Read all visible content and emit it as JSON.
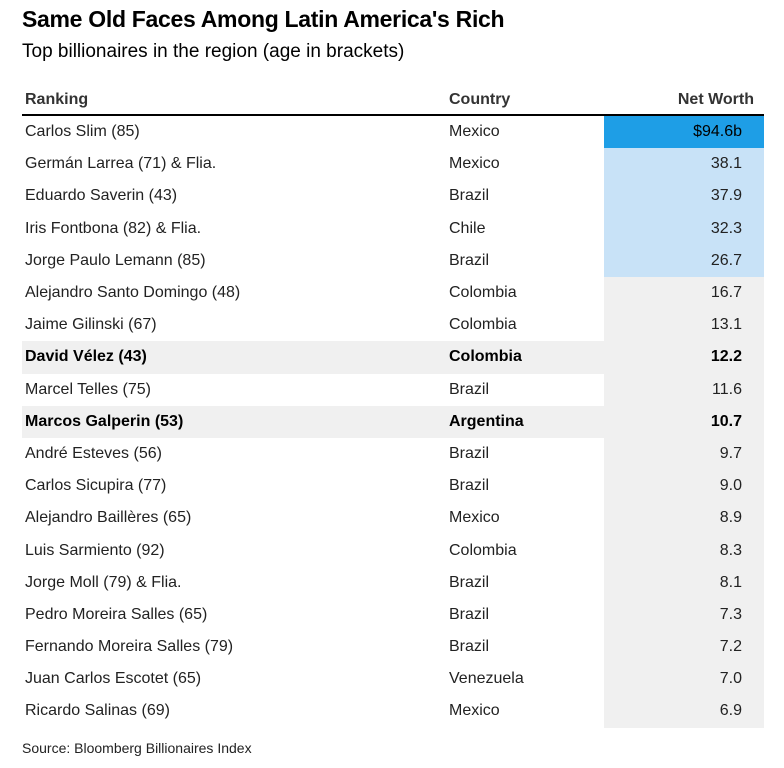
{
  "title": "Same Old Faces Among Latin America's Rich",
  "subtitle": "Top billionaires in the region (age in brackets)",
  "source": "Source: Bloomberg Billionaires Index",
  "colors": {
    "top1": "#1e9ee6",
    "top5": "#c8e2f7",
    "rest": "#f0f0f0",
    "highlight_row": "#f0f0f0"
  },
  "chart_data": {
    "type": "table",
    "title": "Same Old Faces Among Latin America's Rich",
    "subtitle": "Top billionaires in the region (age in brackets)",
    "columns": [
      "Ranking",
      "Country",
      "Net Worth"
    ],
    "rows": [
      {
        "name": "Carlos Slim (85)",
        "country": "Mexico",
        "net_worth": "$94.6b",
        "value": 94.6,
        "bold": false
      },
      {
        "name": "Germán Larrea (71) & Flia.",
        "country": "Mexico",
        "net_worth": "38.1",
        "value": 38.1,
        "bold": false
      },
      {
        "name": "Eduardo Saverin (43)",
        "country": "Brazil",
        "net_worth": "37.9",
        "value": 37.9,
        "bold": false
      },
      {
        "name": "Iris Fontbona (82) & Flia.",
        "country": "Chile",
        "net_worth": "32.3",
        "value": 32.3,
        "bold": false
      },
      {
        "name": "Jorge Paulo Lemann (85)",
        "country": "Brazil",
        "net_worth": "26.7",
        "value": 26.7,
        "bold": false
      },
      {
        "name": "Alejandro Santo Domingo (48)",
        "country": "Colombia",
        "net_worth": "16.7",
        "value": 16.7,
        "bold": false
      },
      {
        "name": "Jaime Gilinski (67)",
        "country": "Colombia",
        "net_worth": "13.1",
        "value": 13.1,
        "bold": false
      },
      {
        "name": "David Vélez (43)",
        "country": "Colombia",
        "net_worth": "12.2",
        "value": 12.2,
        "bold": true
      },
      {
        "name": "Marcel Telles (75)",
        "country": "Brazil",
        "net_worth": "11.6",
        "value": 11.6,
        "bold": false
      },
      {
        "name": "Marcos Galperin (53)",
        "country": "Argentina",
        "net_worth": "10.7",
        "value": 10.7,
        "bold": true
      },
      {
        "name": "André Esteves (56)",
        "country": "Brazil",
        "net_worth": "9.7",
        "value": 9.7,
        "bold": false
      },
      {
        "name": "Carlos Sicupira (77)",
        "country": "Brazil",
        "net_worth": "9.0",
        "value": 9.0,
        "bold": false
      },
      {
        "name": "Alejandro Baillères (65)",
        "country": "Mexico",
        "net_worth": "8.9",
        "value": 8.9,
        "bold": false
      },
      {
        "name": "Luis Sarmiento (92)",
        "country": "Colombia",
        "net_worth": "8.3",
        "value": 8.3,
        "bold": false
      },
      {
        "name": "Jorge Moll (79) & Flia.",
        "country": "Brazil",
        "net_worth": "8.1",
        "value": 8.1,
        "bold": false
      },
      {
        "name": "Pedro Moreira Salles (65)",
        "country": "Brazil",
        "net_worth": "7.3",
        "value": 7.3,
        "bold": false
      },
      {
        "name": "Fernando Moreira Salles (79)",
        "country": "Brazil",
        "net_worth": "7.2",
        "value": 7.2,
        "bold": false
      },
      {
        "name": "Juan Carlos Escotet (65)",
        "country": "Venezuela",
        "net_worth": "7.0",
        "value": 7.0,
        "bold": false
      },
      {
        "name": "Ricardo Salinas (69)",
        "country": "Mexico",
        "net_worth": "6.9",
        "value": 6.9,
        "bold": false
      }
    ]
  }
}
